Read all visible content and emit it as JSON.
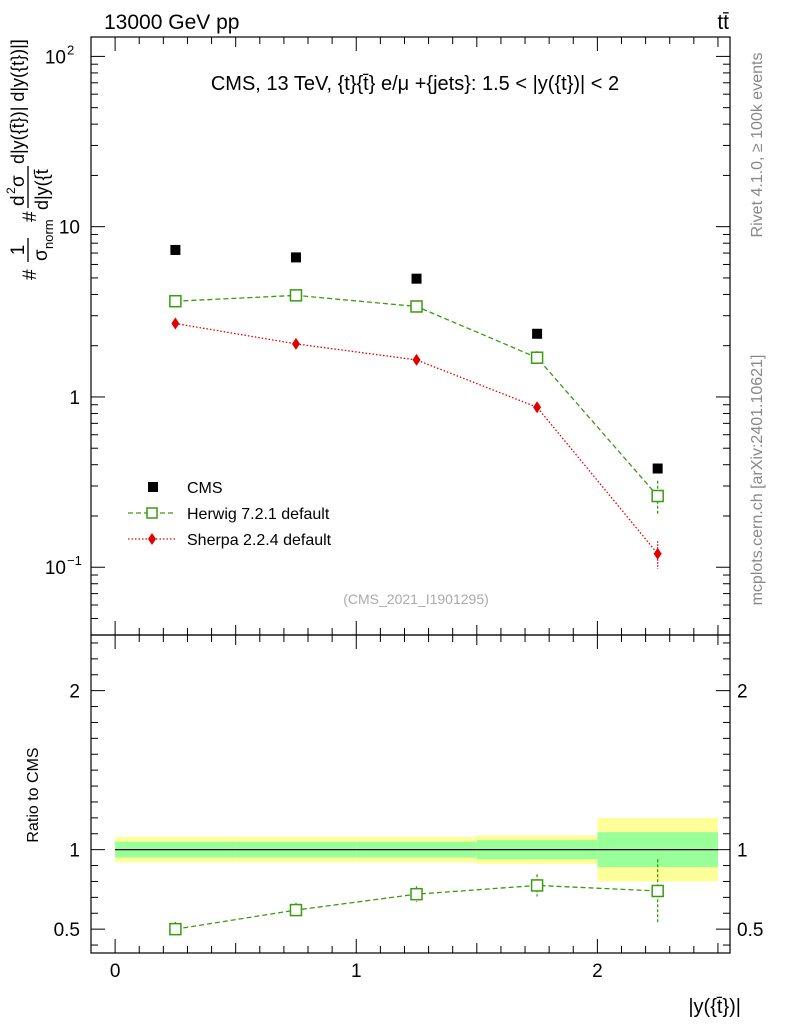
{
  "header": {
    "energy_label": "13000 GeV pp",
    "process_label": "tt̄"
  },
  "side_labels": {
    "rivet": "Rivet 4.1.0, ≥ 100k events",
    "mcplots": "mcplots.cern.ch [arXiv:2401.10621]"
  },
  "chart_data": {
    "type": "scatter",
    "title": "CMS, 13 TeV, {t}{t̄} e/μ +{jets}: 1.5 < |y({t})| < 2",
    "analysis_id": "(CMS_2021_I1901295)",
    "xlabel": "|y({t̄})|",
    "ylabel_main": {
      "prefix": "#",
      "numer": "1",
      "sigma": "σ",
      "norm": "norm",
      "hash2": "#",
      "dsig": "d",
      "two": "2",
      "sig2": "σ",
      "tail": "d|y({t̄})| d|y({t})|]",
      "denom": "d|y({t̄"
    },
    "ylabel_ratio": "Ratio to CMS",
    "xlim": [
      -0.1,
      2.55
    ],
    "ylim_main": [
      0.04,
      130
    ],
    "ylim_ratio": [
      0.35,
      2.35
    ],
    "x_ticks": [
      0,
      1,
      2
    ],
    "x_tick_labels": [
      "0",
      "1",
      "2"
    ],
    "y_ticks_main": [
      {
        "v": 0.1,
        "base": "10",
        "exp": "−1"
      },
      {
        "v": 1,
        "base": "1",
        "exp": ""
      },
      {
        "v": 10,
        "base": "10",
        "exp": ""
      },
      {
        "v": 100,
        "base": "10",
        "exp": "2"
      }
    ],
    "y_ticks_ratio": [
      {
        "v": 0.5,
        "label": "0.5"
      },
      {
        "v": 1,
        "label": "1"
      },
      {
        "v": 2,
        "label": "2"
      }
    ],
    "bins": [
      [
        0,
        0.5
      ],
      [
        0.5,
        1.0
      ],
      [
        1.0,
        1.5
      ],
      [
        1.5,
        2.0
      ],
      [
        2.0,
        2.5
      ]
    ],
    "x": [
      0.25,
      0.75,
      1.25,
      1.75,
      2.25
    ],
    "series": [
      {
        "name": "CMS",
        "values": [
          7.3,
          6.6,
          4.95,
          2.35,
          0.38
        ],
        "color": "#000000",
        "marker": "square-filled"
      },
      {
        "name": "Herwig 7.2.1 default",
        "values": [
          3.65,
          3.95,
          3.4,
          1.7,
          0.262
        ],
        "errors": [
          0.18,
          0.2,
          0.19,
          0.16,
          0.06
        ],
        "color": "#3a9a10",
        "marker": "square-open",
        "line": "dashed"
      },
      {
        "name": "Sherpa 2.2.4 default",
        "values": [
          2.7,
          2.05,
          1.65,
          0.87,
          0.12
        ],
        "errors": [
          0.08,
          0.06,
          0.05,
          0.04,
          0.022
        ],
        "color": "#e00000",
        "marker": "diamond-filled",
        "line": "dotted"
      }
    ],
    "ratio": {
      "values": [
        0.5,
        0.62,
        0.72,
        0.775,
        0.74
      ],
      "errors": [
        0.045,
        0.045,
        0.05,
        0.07,
        0.2
      ],
      "band_inner": [
        0.05,
        0.05,
        0.05,
        0.06,
        0.11
      ],
      "band_outer": [
        0.08,
        0.08,
        0.08,
        0.09,
        0.2
      ]
    },
    "band_colors": {
      "outer": "#ffff99",
      "inner": "#99ff99"
    }
  }
}
